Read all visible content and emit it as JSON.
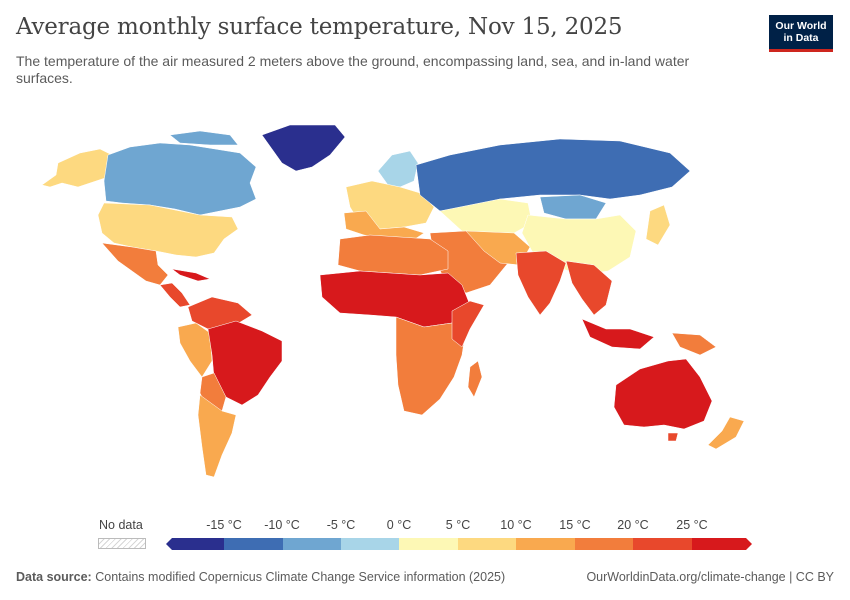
{
  "header": {
    "title": "Average monthly surface temperature, Nov 15, 2025",
    "subtitle": "The temperature of the air measured 2 meters above the ground, encompassing land, sea, and in-land water surfaces."
  },
  "logo": {
    "line1": "Our World",
    "line2": "in Data"
  },
  "legend": {
    "no_data_label": "No data",
    "ticks": [
      "-15 °C",
      "-10 °C",
      "-5 °C",
      "0 °C",
      "5 °C",
      "10 °C",
      "15 °C",
      "20 °C",
      "25 °C"
    ],
    "colors": [
      "#2a2f8e",
      "#3e6db3",
      "#6fa6d1",
      "#a8d5e8",
      "#fdf8b5",
      "#fdd980",
      "#f9a94f",
      "#f27d3c",
      "#e8482c",
      "#d7191c"
    ]
  },
  "footer": {
    "source_label": "Data source:",
    "source_text": "Contains modified Copernicus Climate Change Service information (2025)",
    "right_text": "OurWorldinData.org/climate-change | CC BY"
  }
}
